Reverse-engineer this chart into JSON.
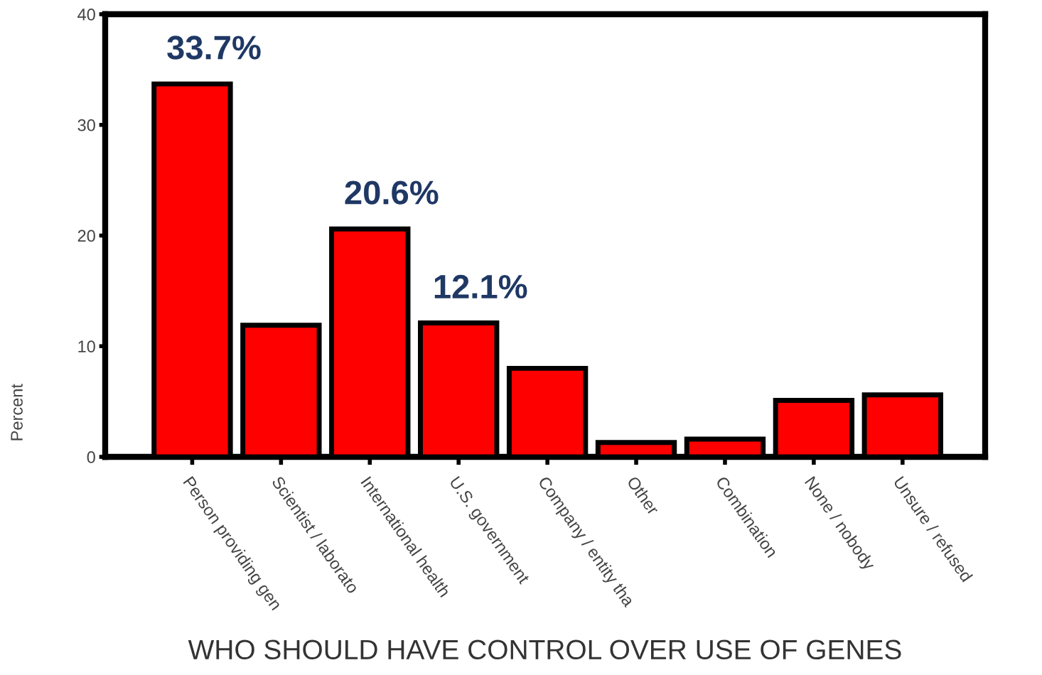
{
  "chart_data": {
    "type": "bar",
    "xlabel": "WHO SHOULD HAVE CONTROL OVER USE OF GENES",
    "ylabel": "Percent",
    "categories": [
      "Person providing gen",
      "Scientist / laborato",
      "International health",
      "U.S. government",
      "Company / entity tha",
      "Other",
      "Combination",
      "None / nobody",
      "Unsure / refused"
    ],
    "values": [
      33.7,
      11.9,
      20.6,
      12.1,
      8.0,
      1.3,
      1.6,
      5.1,
      5.6
    ],
    "value_labels": [
      "33.7%",
      null,
      "20.6%",
      "12.1%",
      null,
      null,
      null,
      null,
      null
    ],
    "color": "#ff0000",
    "ylim": [
      0,
      40
    ],
    "yticks": [
      0,
      10,
      20,
      30,
      40
    ],
    "grid": false,
    "legend": false
  }
}
